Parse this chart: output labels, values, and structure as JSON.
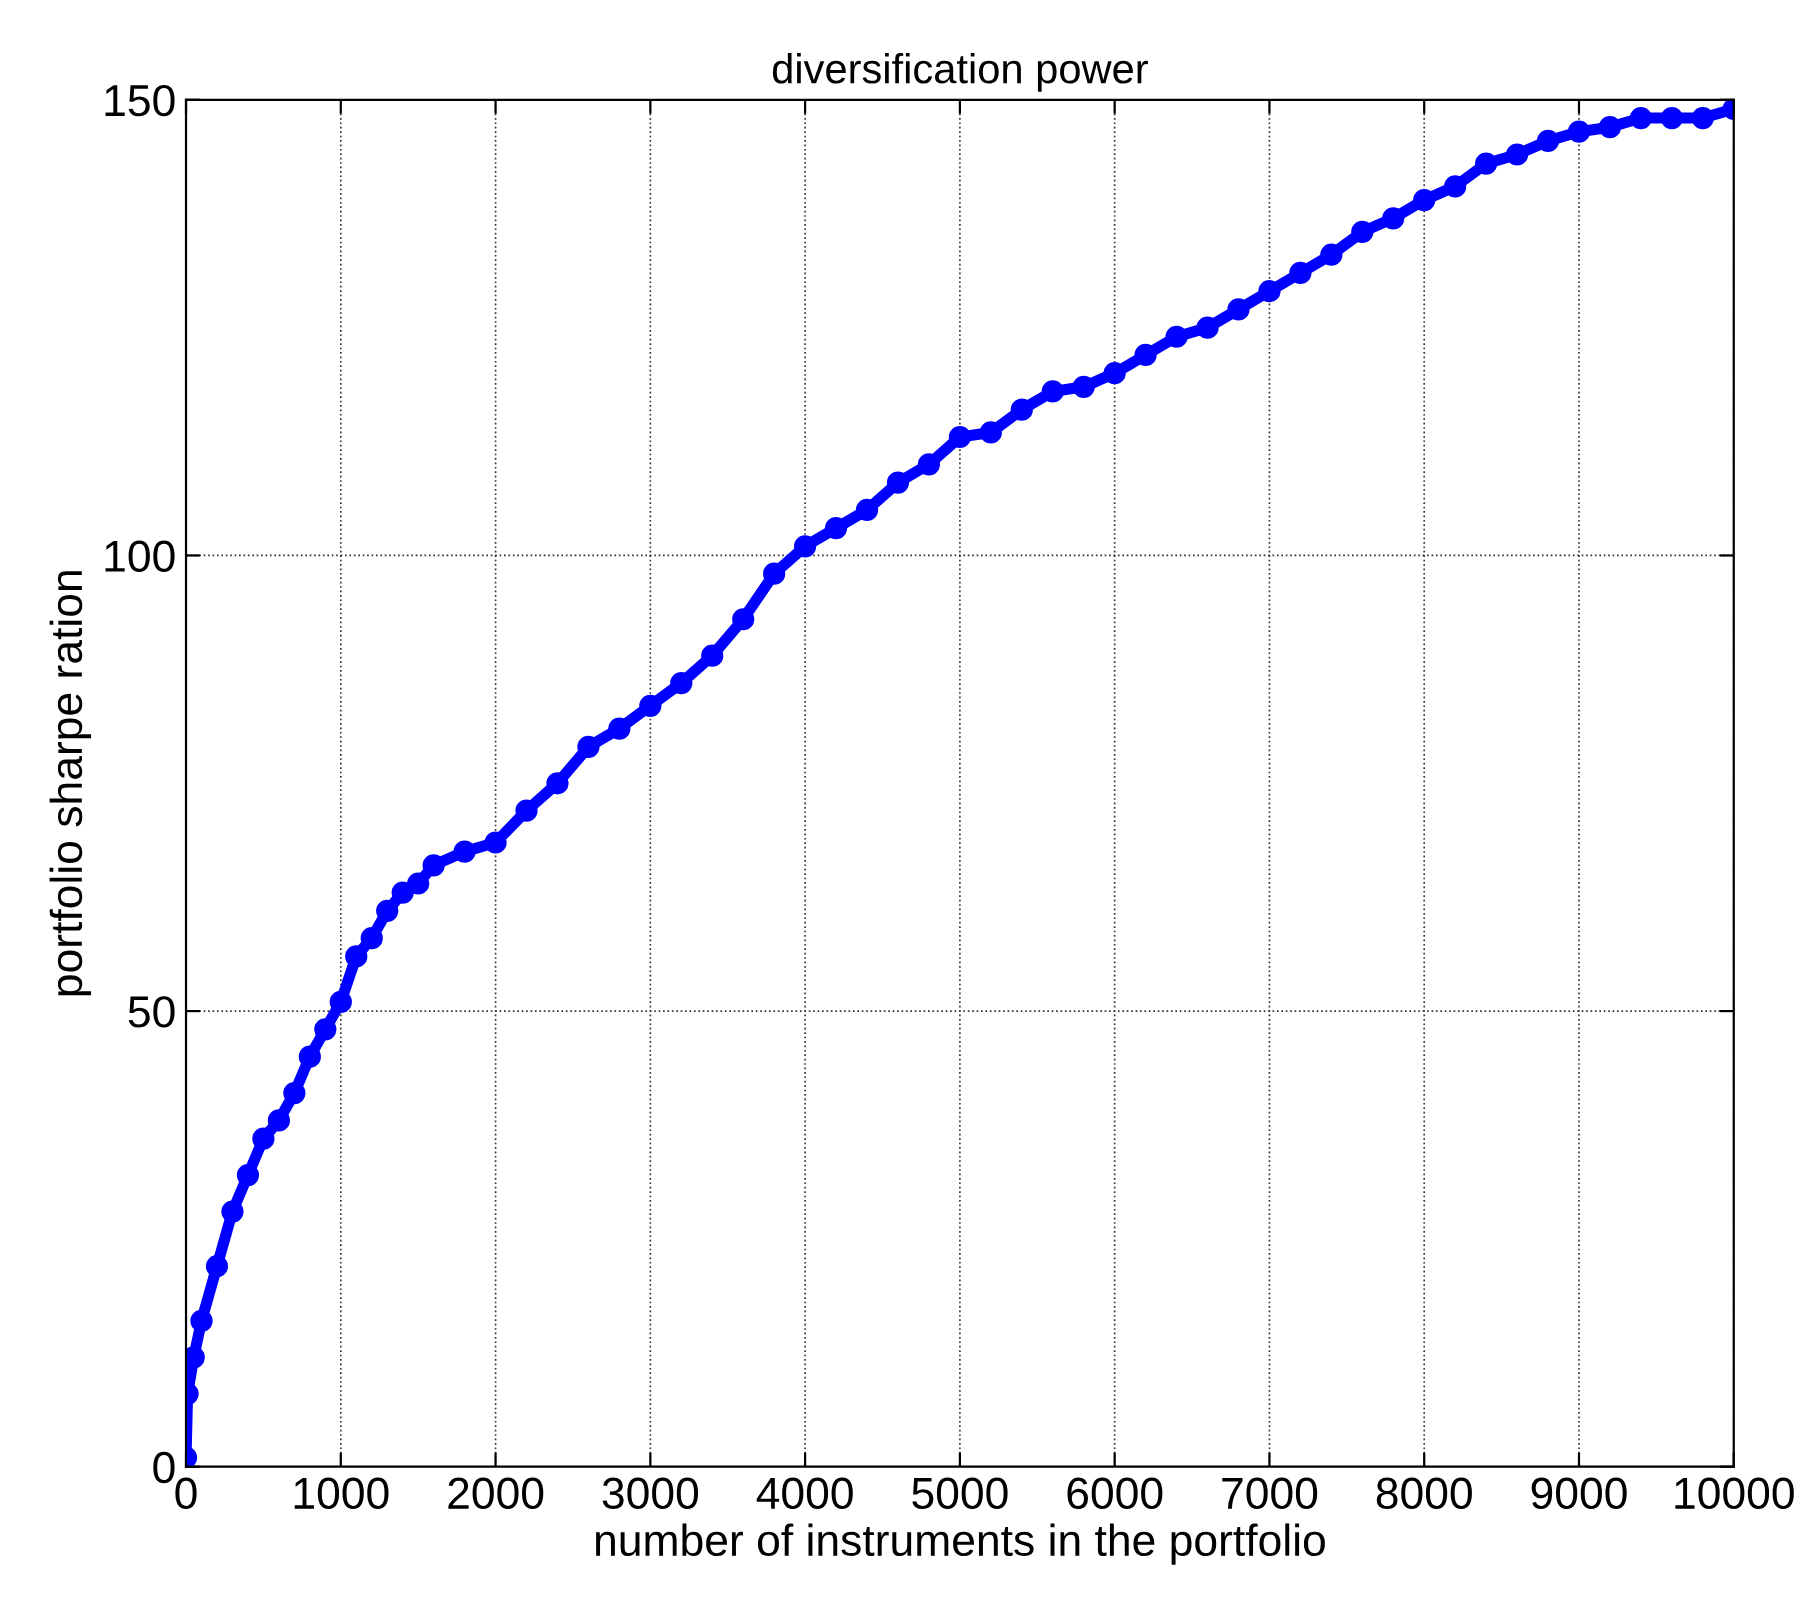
{
  "chart_data": {
    "type": "line",
    "title": "diversification power",
    "xlabel": "number of instruments in the portfolio",
    "ylabel": "portfolio sharpe ration",
    "x": [
      0,
      10,
      50,
      100,
      200,
      300,
      400,
      500,
      600,
      700,
      800,
      900,
      1000,
      1100,
      1200,
      1300,
      1400,
      1500,
      1600,
      1800,
      2000,
      2200,
      2400,
      2600,
      2800,
      3000,
      3200,
      3400,
      3600,
      3800,
      4000,
      4200,
      4400,
      4600,
      4800,
      5000,
      5200,
      5400,
      5600,
      5800,
      6000,
      6200,
      6400,
      6600,
      6800,
      7000,
      7200,
      7400,
      7600,
      7800,
      8000,
      8200,
      8400,
      8600,
      8800,
      9000,
      9200,
      9400,
      9600,
      9800,
      10000
    ],
    "series": [
      {
        "color": "#0000ff",
        "values": [
          1,
          8,
          12,
          16,
          22,
          28,
          32,
          36,
          38,
          41,
          45,
          48,
          51,
          56,
          58,
          61,
          63,
          64,
          66,
          67.5,
          68.5,
          72,
          75,
          79,
          81,
          83.5,
          86,
          89,
          93,
          98,
          101,
          103,
          105,
          108,
          110,
          113,
          113.5,
          116,
          118,
          118.5,
          120,
          122,
          124,
          125,
          127,
          129,
          131,
          133,
          135.5,
          137,
          139,
          140.5,
          143,
          144,
          145.5,
          146.5,
          147,
          148,
          148,
          148,
          149
        ]
      }
    ],
    "xlim": [
      0,
      10000
    ],
    "xticks": [
      0,
      1000,
      2000,
      3000,
      4000,
      5000,
      6000,
      7000,
      8000,
      9000,
      10000
    ],
    "ylim": [
      0,
      150
    ],
    "yticks": [
      0,
      50,
      100,
      150
    ],
    "grid": true,
    "marker": "circle",
    "line_style": "solid"
  }
}
